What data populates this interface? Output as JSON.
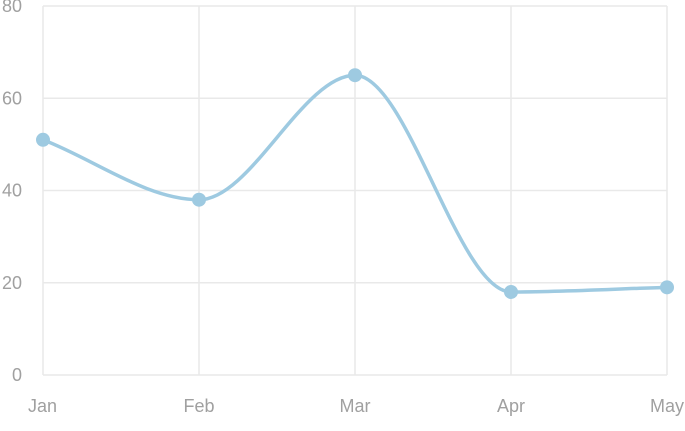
{
  "chart_data": {
    "type": "line",
    "title": "",
    "xlabel": "",
    "ylabel": "",
    "categories": [
      "Jan",
      "Feb",
      "Mar",
      "Apr",
      "May"
    ],
    "series": [
      {
        "values": [
          51,
          38,
          65,
          18,
          19
        ]
      }
    ],
    "ylim": [
      0,
      80
    ],
    "yticks": [
      0,
      20,
      40,
      60,
      80
    ],
    "grid": true,
    "smooth": true,
    "line_color": "#9ecae1",
    "marker_color": "#9ecae1",
    "grid_color": "#e9e9e9",
    "tick_color": "#a0a0a0"
  }
}
